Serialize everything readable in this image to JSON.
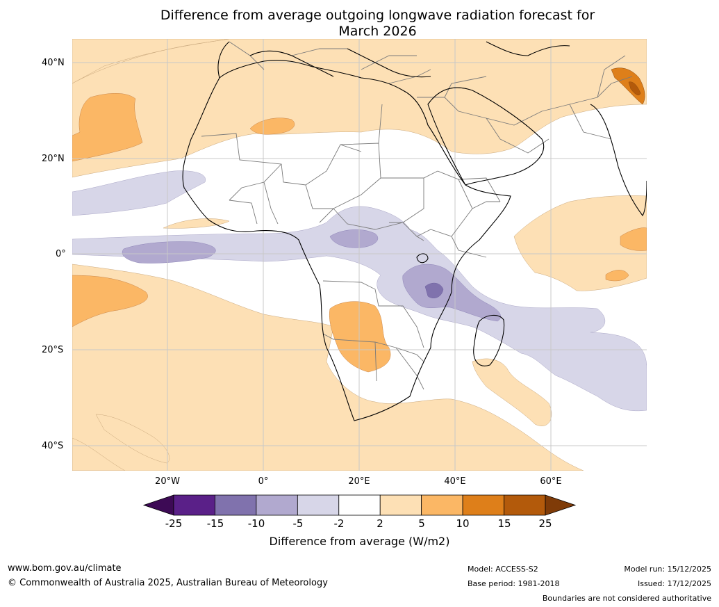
{
  "title": {
    "line1": "Difference from average outgoing longwave radiation forecast for",
    "line2": "March 2026"
  },
  "axes": {
    "lat_labels": [
      "40°N",
      "20°N",
      "0°",
      "20°S",
      "40°S"
    ],
    "lon_labels": [
      "20°W",
      "0°",
      "20°E",
      "40°E",
      "60°E"
    ]
  },
  "colorbar": {
    "labels": [
      "-25",
      "-15",
      "-10",
      "-5",
      "-2",
      "2",
      "5",
      "10",
      "15",
      "25"
    ],
    "colors": [
      "#3d0a55",
      "#5a2088",
      "#8072ad",
      "#b1a9cf",
      "#d7d6e8",
      "#ffffff",
      "#fde0b5",
      "#fbb765",
      "#de7f1a",
      "#b35a0b",
      "#7f3b08"
    ],
    "title": "Difference from average (W/m2)"
  },
  "footer": {
    "website": "www.bom.gov.au/climate",
    "copyright": "© Commonwealth of Australia 2025, Australian Bureau of Meteorology",
    "model": "Model: ACCESS-S2",
    "base_period": "Base period: 1981-2018",
    "model_run": "Model run: 15/12/2025",
    "issued": "Issued: 17/12/2025",
    "disclaimer": "Boundaries are not considered authoritative"
  }
}
